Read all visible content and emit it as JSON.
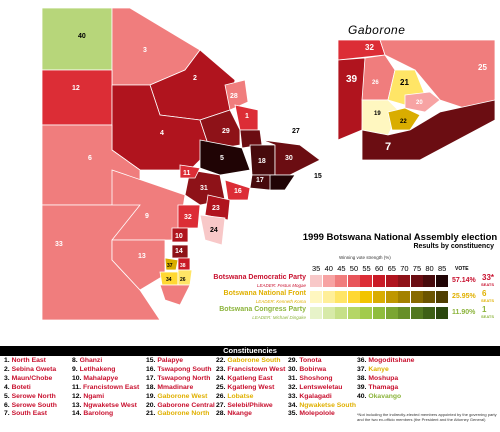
{
  "inset": {
    "title": "Gaborone"
  },
  "title": "1999 Botswana National Assembly election",
  "subtitle": "Results by constituency",
  "legend": {
    "header": "Winning vote strength (%)",
    "scale": [
      "35",
      "40",
      "45",
      "50",
      "55",
      "60",
      "65",
      "70",
      "75",
      "80",
      "85"
    ],
    "vote_label": "VOTE",
    "seats_label": "SEATS"
  },
  "parties": [
    {
      "name": "Botswana Democratic Party",
      "leader": "LEADER: Festus Mogae",
      "vote": "57.14%",
      "seats": "33*",
      "color": "#c8102e",
      "swatches": [
        "#f8c8c8",
        "#f7a3a3",
        "#f07d7d",
        "#e8555a",
        "#dc2d36",
        "#c91a26",
        "#b0141e",
        "#8e1218",
        "#6b0d12",
        "#470a0c",
        "#200405"
      ]
    },
    {
      "name": "Botswana National Front",
      "leader": "LEADER: Kenneth Koma",
      "vote": "25.95%",
      "seats": "6",
      "color": "#e0b000",
      "swatches": [
        "#fff7c0",
        "#ffef99",
        "#ffe566",
        "#ffd833",
        "#f2c400",
        "#d9ad00",
        "#bf9700",
        "#a38100",
        "#876a00",
        "#6b5400",
        "#4f3e00"
      ]
    },
    {
      "name": "Botswana Congress Party",
      "leader": "LEADER: Michael Dingake",
      "vote": "11.90%",
      "seats": "1",
      "color": "#8cb43c",
      "swatches": [
        "#e7f3c9",
        "#d7eaa8",
        "#c6e087",
        "#b5d666",
        "#a2cb4c",
        "#8fbd3c",
        "#7ba632",
        "#678f28",
        "#52781f",
        "#3e6016",
        "#2b480e"
      ]
    }
  ],
  "constituencies_title": "Constituencies",
  "constituencies": [
    {
      "label": "1. North East",
      "color": "#c8102e"
    },
    {
      "label": "2. Sebina Gweta",
      "color": "#c8102e"
    },
    {
      "label": "3. Maun/Chobe",
      "color": "#c8102e"
    },
    {
      "label": "4. Boteti",
      "color": "#c8102e"
    },
    {
      "label": "5. Serowe North",
      "color": "#c8102e"
    },
    {
      "label": "6. Serowe South",
      "color": "#c8102e"
    },
    {
      "label": "7. South East",
      "color": "#c8102e"
    },
    {
      "label": "8. Ghanzi",
      "color": "#c8102e"
    },
    {
      "label": "9. Letlhakeng",
      "color": "#c8102e"
    },
    {
      "label": "10. Mahalapye",
      "color": "#c8102e"
    },
    {
      "label": "11. Francistown East",
      "color": "#c8102e"
    },
    {
      "label": "12. Ngami",
      "color": "#c8102e"
    },
    {
      "label": "13. Ngwaketse West",
      "color": "#c8102e"
    },
    {
      "label": "14. Barolong",
      "color": "#c8102e"
    },
    {
      "label": "15. Palapye",
      "color": "#c8102e"
    },
    {
      "label": "16. Tswapong South",
      "color": "#c8102e"
    },
    {
      "label": "17. Tswapong North",
      "color": "#c8102e"
    },
    {
      "label": "18. Mmadinare",
      "color": "#c8102e"
    },
    {
      "label": "19. Gaborone West",
      "color": "#e0b000"
    },
    {
      "label": "20. Gaborone Central",
      "color": "#c8102e"
    },
    {
      "label": "21. Gaborone North",
      "color": "#e0b000"
    },
    {
      "label": "22. Gaborone South",
      "color": "#e0b000"
    },
    {
      "label": "23. Francistown West",
      "color": "#c8102e"
    },
    {
      "label": "24. Kgatleng East",
      "color": "#c8102e"
    },
    {
      "label": "25. Kgatleng West",
      "color": "#c8102e"
    },
    {
      "label": "26. Lobatse",
      "color": "#e0b000"
    },
    {
      "label": "27. Selebi/Phikwe",
      "color": "#c8102e"
    },
    {
      "label": "28. Nkange",
      "color": "#c8102e"
    },
    {
      "label": "29. Tonota",
      "color": "#c8102e"
    },
    {
      "label": "30. Bobirwa",
      "color": "#c8102e"
    },
    {
      "label": "31. Shoshong",
      "color": "#c8102e"
    },
    {
      "label": "32. Lentsweletau",
      "color": "#c8102e"
    },
    {
      "label": "33. Kgalagadi",
      "color": "#c8102e"
    },
    {
      "label": "34. Ngwaketse South",
      "color": "#e0b000"
    },
    {
      "label": "35. Molepolole",
      "color": "#c8102e"
    },
    {
      "label": "36. Mogoditshane",
      "color": "#c8102e"
    },
    {
      "label": "37. Kanye",
      "color": "#e0b000"
    },
    {
      "label": "38. Moshupa",
      "color": "#c8102e"
    },
    {
      "label": "39. Thamaga",
      "color": "#c8102e"
    },
    {
      "label": "40. Okavango",
      "color": "#8cb43c"
    }
  ],
  "footnote": "*Not including the indirectly-elected members appointed by the governing party and the two ex-officio members (the President and the Attorney General)",
  "map_labels": [
    "40",
    "3",
    "12",
    "2",
    "28",
    "1",
    "4",
    "29",
    "27",
    "5",
    "18",
    "30",
    "6",
    "17",
    "15",
    "31",
    "11",
    "16",
    "23",
    "9",
    "32",
    "10",
    "14",
    "24",
    "33",
    "13",
    "37",
    "38",
    "34",
    "26",
    "21",
    "25",
    "39",
    "19",
    "20",
    "22",
    "7",
    "36",
    "35",
    "8"
  ]
}
